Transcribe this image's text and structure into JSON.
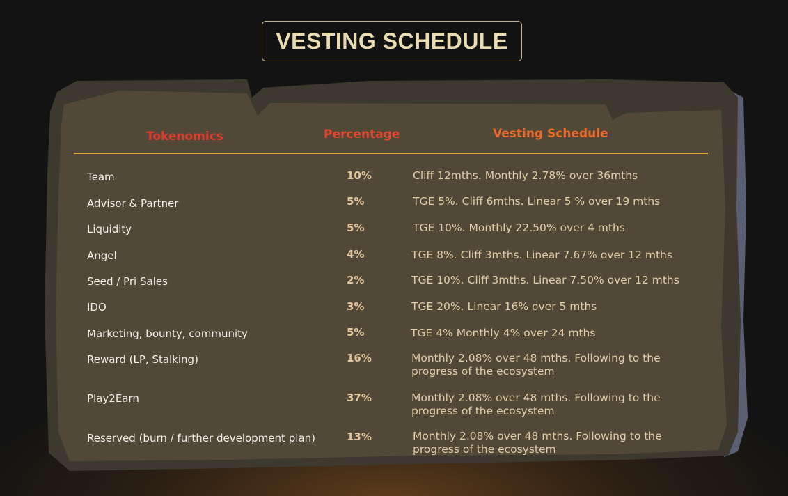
{
  "title": "VESTING SCHEDULE",
  "colors": {
    "background": "#131313",
    "board": "#524838",
    "title_text": "#e9dcb3",
    "header_tokenomics": "#e23a2c",
    "header_percentage": "#e6452e",
    "header_vesting": "#ec6a2a",
    "divider": "#d7a63c",
    "row_name": "#f2f0ea",
    "row_percentage": "#e3c69d",
    "row_vesting": "#e1cda8"
  },
  "table": {
    "headers": {
      "tokenomics": "Tokenomics",
      "percentage": "Percentage",
      "vesting": "Vesting Schedule"
    },
    "rows": [
      {
        "name": "Team",
        "percentage": "10%",
        "vesting": "Cliff 12mths. Monthly 2.78% over 36mths"
      },
      {
        "name": "Advisor & Partner",
        "percentage": "5%",
        "vesting": "TGE 5%. Cliff 6mths. Linear 5 % over 19 mths"
      },
      {
        "name": "Liquidity",
        "percentage": "5%",
        "vesting": "TGE 10%. Monthly 22.50% over 4 mths"
      },
      {
        "name": "Angel",
        "percentage": "4%",
        "vesting": "TGE 8%. Cliff 3mths. Linear 7.67% over 12 mths"
      },
      {
        "name": "Seed / Pri Sales",
        "percentage": "2%",
        "vesting": "TGE 10%. Cliff 3mths. Linear 7.50% over 12 mths"
      },
      {
        "name": "IDO",
        "percentage": "3%",
        "vesting": "TGE 20%. Linear 16% over 5 mths"
      },
      {
        "name": "Marketing, bounty, community",
        "percentage": "5%",
        "vesting": "TGE 4% Monthly 4% over 24 mths"
      },
      {
        "name": "Reward (LP, Stalking)",
        "percentage": "16%",
        "vesting": "Monthly 2.08% over 48 mths. Following to the progress of the ecosystem"
      },
      {
        "name": "Play2Earn",
        "percentage": "37%",
        "vesting": "Monthly 2.08% over 48 mths. Following to the progress of the ecosystem"
      },
      {
        "name": "Reserved (burn / further development plan)",
        "percentage": "13%",
        "vesting": "Monthly 2.08% over 48 mths. Following to the progress of the ecosystem"
      }
    ]
  }
}
